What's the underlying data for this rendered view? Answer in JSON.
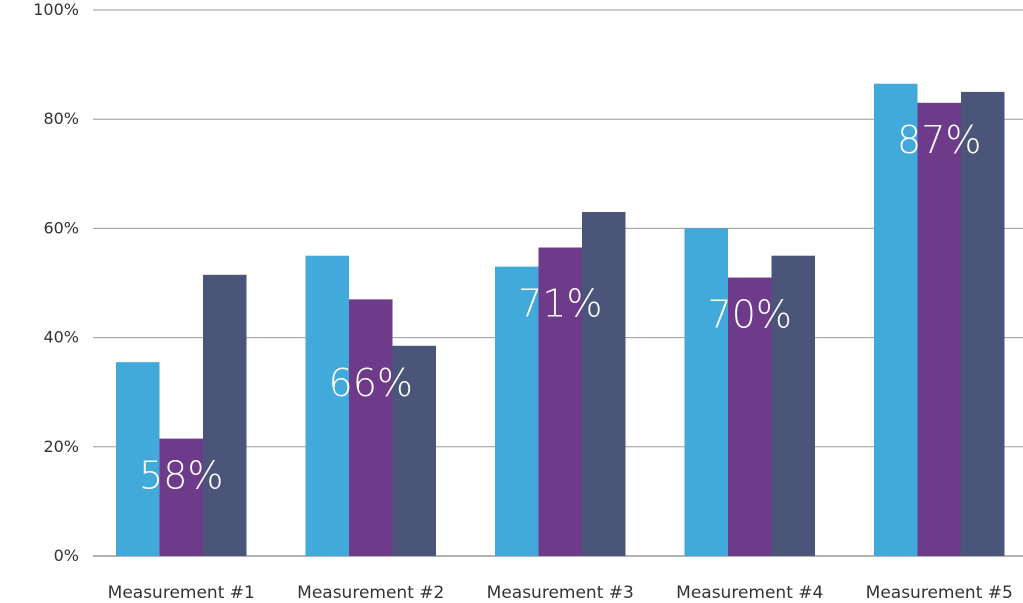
{
  "chart_data": {
    "type": "bar",
    "categories": [
      "Measurement #1",
      "Measurement #2",
      "Measurement #3",
      "Measurement #4",
      "Measurement #5"
    ],
    "series": [
      {
        "values": [
          35.5,
          55,
          53,
          60,
          86.5
        ]
      },
      {
        "values": [
          21.5,
          47,
          56.5,
          51,
          83
        ]
      },
      {
        "values": [
          51.5,
          38.5,
          63,
          55,
          85
        ]
      }
    ],
    "overlay_labels": [
      "58%",
      "66%",
      "71%",
      "70%",
      "87%"
    ],
    "y_ticks": [
      "0%",
      "20%",
      "40%",
      "60%",
      "80%",
      "100%"
    ],
    "ylim": [
      0,
      100
    ],
    "grid": true,
    "colors": [
      "#41aadb",
      "#6e3a8a",
      "#4b557a"
    ],
    "gridline_color": "#9a9a9a",
    "xlabel": "",
    "ylabel": ""
  }
}
